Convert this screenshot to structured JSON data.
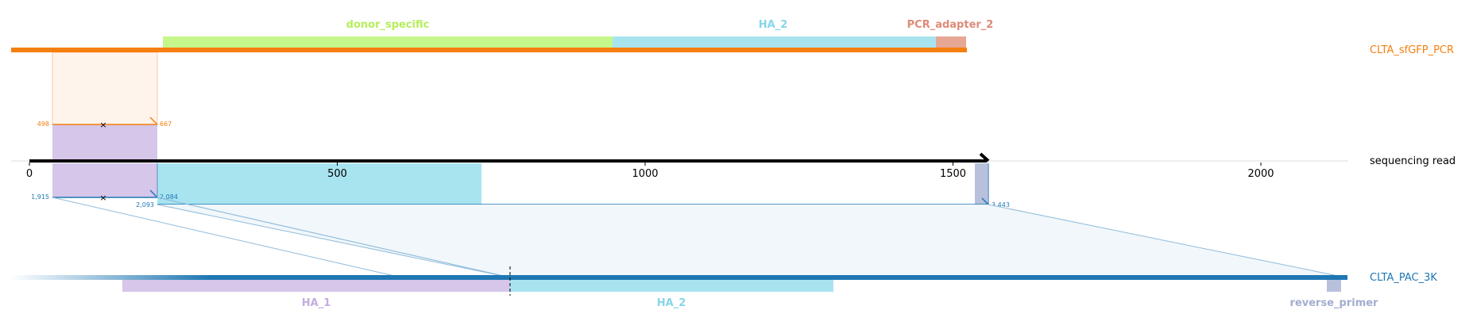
{
  "colors": {
    "sfgfp_orange": "#f57f0f",
    "pac_blue": "#1f77b4",
    "read_black": "#000000",
    "donor_specific": "#c5f78a",
    "ha_2": "#a8e4ef",
    "ha_1": "#d5c6ea",
    "pcr_adapter_2": "#e7a795",
    "reverse_primer": "#b8c1dc",
    "alignment_fill_top": "#fff4ec",
    "alignment_fill_bottom": "#f1f7fa"
  },
  "top_reference": {
    "name": "CLTA_sfGFP_PCR",
    "features": [
      {
        "label": "donor_specific",
        "color": "#c5f78a",
        "label_color": "#b5ef5a"
      },
      {
        "label": "HA_2",
        "color": "#a8e4ef",
        "label_color": "#86d6e8"
      },
      {
        "label": "PCR_adapter_2",
        "color": "#e7a795",
        "label_color": "#dd8a78"
      }
    ],
    "alignment": {
      "start_label": "498",
      "end_label": "667",
      "strand_mark": "×"
    }
  },
  "read": {
    "name": "sequencing read",
    "axis_ticks": [
      0,
      500,
      1000,
      1500,
      2000
    ],
    "axis_range": [
      0,
      2100
    ]
  },
  "bottom_reference": {
    "name": "CLTA_PAC_3K",
    "features": [
      {
        "label": "HA_1",
        "color": "#d5c6ea",
        "label_color": "#c2addf"
      },
      {
        "label": "HA_2",
        "color": "#a8e4ef",
        "label_color": "#86d6e8"
      },
      {
        "label": "reverse_primer",
        "color": "#b8c1dc",
        "label_color": "#a3adcf"
      }
    ],
    "alignment_1": {
      "start_label": "1,915",
      "end_label": "2,084",
      "strand_mark": "×"
    },
    "alignment_2": {
      "start_label": "2,093",
      "end_label": "3,443"
    }
  }
}
